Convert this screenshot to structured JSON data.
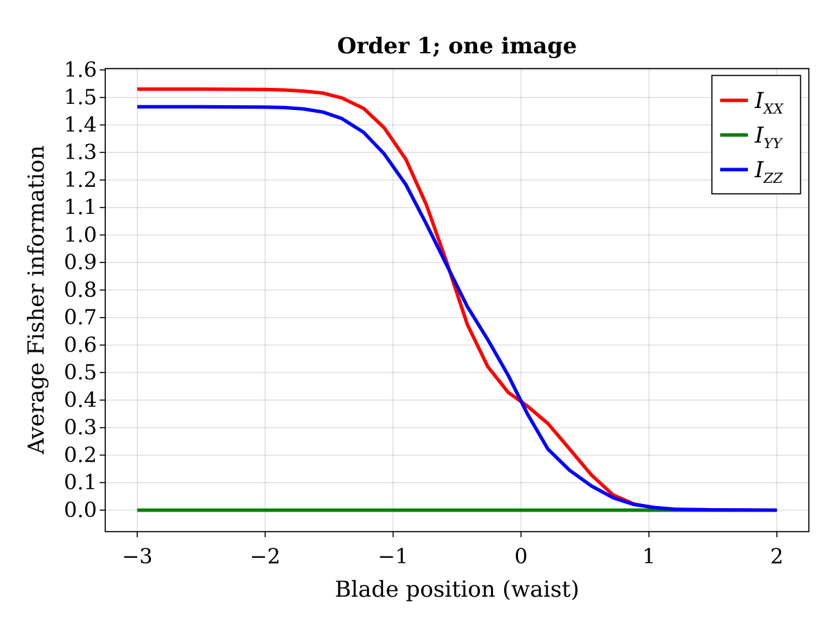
{
  "chart_data": {
    "type": "line",
    "title": "Order 1; one image",
    "xlabel": "Blade position (waist)",
    "ylabel": "Average Fisher information",
    "xlim": [
      -3.25,
      2.25
    ],
    "ylim": [
      -0.078,
      1.605
    ],
    "x_ticks": [
      -3,
      -2,
      -1,
      0,
      1,
      2
    ],
    "x_tick_labels": [
      "−3",
      "−2",
      "−1",
      "0",
      "1",
      "2"
    ],
    "y_ticks": [
      0.0,
      0.1,
      0.2,
      0.3,
      0.4,
      0.5,
      0.6,
      0.7,
      0.8,
      0.9,
      1.0,
      1.1,
      1.2,
      1.3,
      1.4,
      1.5,
      1.6
    ],
    "y_tick_labels": [
      "0.0",
      "0.1",
      "0.2",
      "0.3",
      "0.4",
      "0.5",
      "0.6",
      "0.7",
      "0.8",
      "0.9",
      "1.0",
      "1.1",
      "1.2",
      "1.3",
      "1.4",
      "1.5",
      "1.6"
    ],
    "grid": true,
    "legend_position": "top-right",
    "series": [
      {
        "name": "I",
        "name_sub": "XX",
        "color": "#ff0000",
        "x": [
          -3.0,
          -2.5,
          -2.0,
          -1.85,
          -1.7,
          -1.55,
          -1.4,
          -1.23,
          -1.07,
          -0.9,
          -0.74,
          -0.58,
          -0.42,
          -0.26,
          -0.1,
          0.05,
          0.21,
          0.38,
          0.55,
          0.72,
          0.88,
          1.05,
          1.21,
          1.5,
          2.0
        ],
        "y": [
          1.53,
          1.53,
          1.529,
          1.527,
          1.523,
          1.516,
          1.498,
          1.46,
          1.39,
          1.275,
          1.11,
          0.9,
          0.675,
          0.522,
          0.428,
          0.378,
          0.315,
          0.222,
          0.128,
          0.055,
          0.023,
          0.008,
          0.003,
          0.001,
          0.0
        ]
      },
      {
        "name": "I",
        "name_sub": "YY",
        "color": "#008000",
        "x": [
          -3.0,
          2.0
        ],
        "y": [
          0.0,
          0.0
        ]
      },
      {
        "name": "I",
        "name_sub": "ZZ",
        "color": "#0000ff",
        "x": [
          -3.0,
          -2.5,
          -2.0,
          -1.85,
          -1.7,
          -1.55,
          -1.4,
          -1.23,
          -1.07,
          -0.9,
          -0.74,
          -0.58,
          -0.42,
          -0.26,
          -0.1,
          0.05,
          0.21,
          0.38,
          0.55,
          0.72,
          0.88,
          1.05,
          1.21,
          1.5,
          2.0
        ],
        "y": [
          1.466,
          1.466,
          1.465,
          1.463,
          1.458,
          1.447,
          1.423,
          1.373,
          1.295,
          1.183,
          1.04,
          0.89,
          0.74,
          0.62,
          0.49,
          0.35,
          0.222,
          0.145,
          0.088,
          0.045,
          0.021,
          0.009,
          0.003,
          0.001,
          0.0
        ]
      }
    ]
  }
}
